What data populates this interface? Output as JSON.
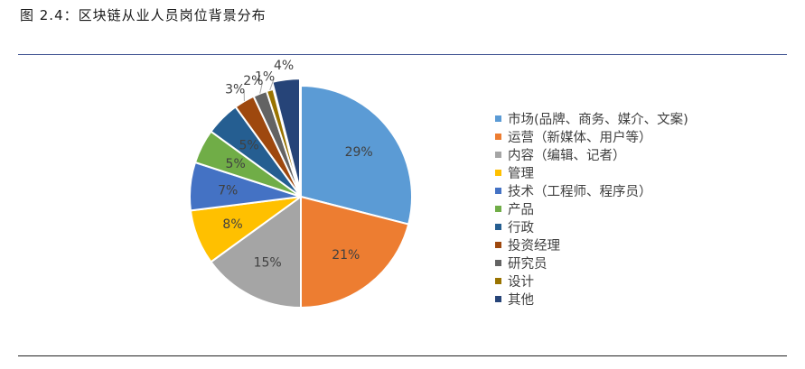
{
  "figure": {
    "title": "图 2.4：区块链从业人员岗位背景分布"
  },
  "chart_data": {
    "type": "pie",
    "title": "",
    "start_angle_deg": 90,
    "direction": "clockwise",
    "slices": [
      {
        "name": "市场(品牌、商务、媒介、文案)",
        "value": 29,
        "label": "29%",
        "color": "#5b9bd5"
      },
      {
        "name": "运营（新媒体、用户等）",
        "value": 21,
        "label": "21%",
        "color": "#ed7d31"
      },
      {
        "name": "内容（编辑、记者）",
        "value": 15,
        "label": "15%",
        "color": "#a5a5a5"
      },
      {
        "name": "管理",
        "value": 8,
        "label": "8%",
        "color": "#ffc000"
      },
      {
        "name": "技术（工程师、程序员）",
        "value": 7,
        "label": "7%",
        "color": "#4472c4"
      },
      {
        "name": "产品",
        "value": 5,
        "label": "5%",
        "color": "#70ad47"
      },
      {
        "name": "行政",
        "value": 5,
        "label": "5%",
        "color": "#255e91"
      },
      {
        "name": "投资经理",
        "value": 3,
        "label": "3%",
        "color": "#9e480e"
      },
      {
        "name": "研究员",
        "value": 2,
        "label": "2%",
        "color": "#636363"
      },
      {
        "name": "设计",
        "value": 1,
        "label": "1%",
        "color": "#997300"
      },
      {
        "name": "其他",
        "value": 4,
        "label": "4%",
        "color": "#264478"
      }
    ],
    "legend_position": "right"
  }
}
